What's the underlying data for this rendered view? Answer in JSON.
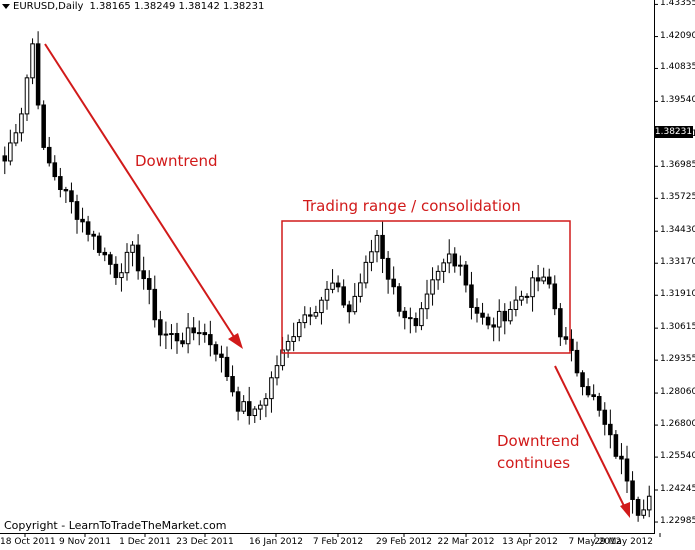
{
  "header": {
    "symbol": "EURUSD,Daily",
    "ohlc": "1.38165 1.38249 1.38142 1.38231"
  },
  "current_price": "1.38231",
  "copyright": "Copyright - LearnToTradeTheMarket.com",
  "annotations": {
    "downtrend": "Downtrend",
    "range": "Trading range / consolidation",
    "continues_line1": "Downtrend",
    "continues_line2": "continues"
  },
  "colors": {
    "annotation": "#d11a1a",
    "candle": "#000000",
    "background": "#ffffff"
  },
  "chart_data": {
    "type": "candlestick",
    "symbol": "EURUSD",
    "timeframe": "Daily",
    "y_ticks": [
      "1.43355",
      "1.42090",
      "1.40835",
      "1.39540",
      "1.38231",
      "1.36985",
      "1.35725",
      "1.34430",
      "1.33170",
      "1.31910",
      "1.30615",
      "1.29355",
      "1.28060",
      "1.26800",
      "1.25540",
      "1.24245",
      "1.22985"
    ],
    "x_ticks": [
      "18 Oct 2011",
      "9 Nov 2011",
      "1 Dec 2011",
      "23 Dec 2011",
      "16 Jan 2012",
      "7 Feb 2012",
      "29 Feb 2012",
      "22 Mar 2012",
      "13 Apr 2012",
      "7 May 2012",
      "29 May 2012"
    ],
    "ylim": [
      1.2275,
      1.4345
    ],
    "trading_range_box": {
      "price_high": 1.3472,
      "price_low": 1.2994
    },
    "close_waypoints": [
      [
        0,
        1.372
      ],
      [
        3,
        1.392
      ],
      [
        5,
        1.418
      ],
      [
        7,
        1.375
      ],
      [
        10,
        1.362
      ],
      [
        14,
        1.348
      ],
      [
        17,
        1.338
      ],
      [
        20,
        1.328
      ],
      [
        23,
        1.336
      ],
      [
        25,
        1.326
      ],
      [
        28,
        1.304
      ],
      [
        32,
        1.302
      ],
      [
        35,
        1.306
      ],
      [
        38,
        1.298
      ],
      [
        40,
        1.288
      ],
      [
        42,
        1.276
      ],
      [
        45,
        1.272
      ],
      [
        47,
        1.28
      ],
      [
        49,
        1.292
      ],
      [
        51,
        1.3
      ],
      [
        53,
        1.31
      ],
      [
        56,
        1.315
      ],
      [
        59,
        1.323
      ],
      [
        62,
        1.313
      ],
      [
        65,
        1.33
      ],
      [
        67,
        1.343
      ],
      [
        69,
        1.327
      ],
      [
        71,
        1.315
      ],
      [
        74,
        1.305
      ],
      [
        77,
        1.323
      ],
      [
        80,
        1.335
      ],
      [
        82,
        1.332
      ],
      [
        84,
        1.316
      ],
      [
        87,
        1.306
      ],
      [
        90,
        1.312
      ],
      [
        93,
        1.319
      ],
      [
        96,
        1.325
      ],
      [
        98,
        1.323
      ],
      [
        100,
        1.305
      ],
      [
        103,
        1.29
      ],
      [
        106,
        1.278
      ],
      [
        109,
        1.262
      ],
      [
        112,
        1.248
      ],
      [
        114,
        1.235
      ],
      [
        116,
        1.24
      ]
    ]
  }
}
